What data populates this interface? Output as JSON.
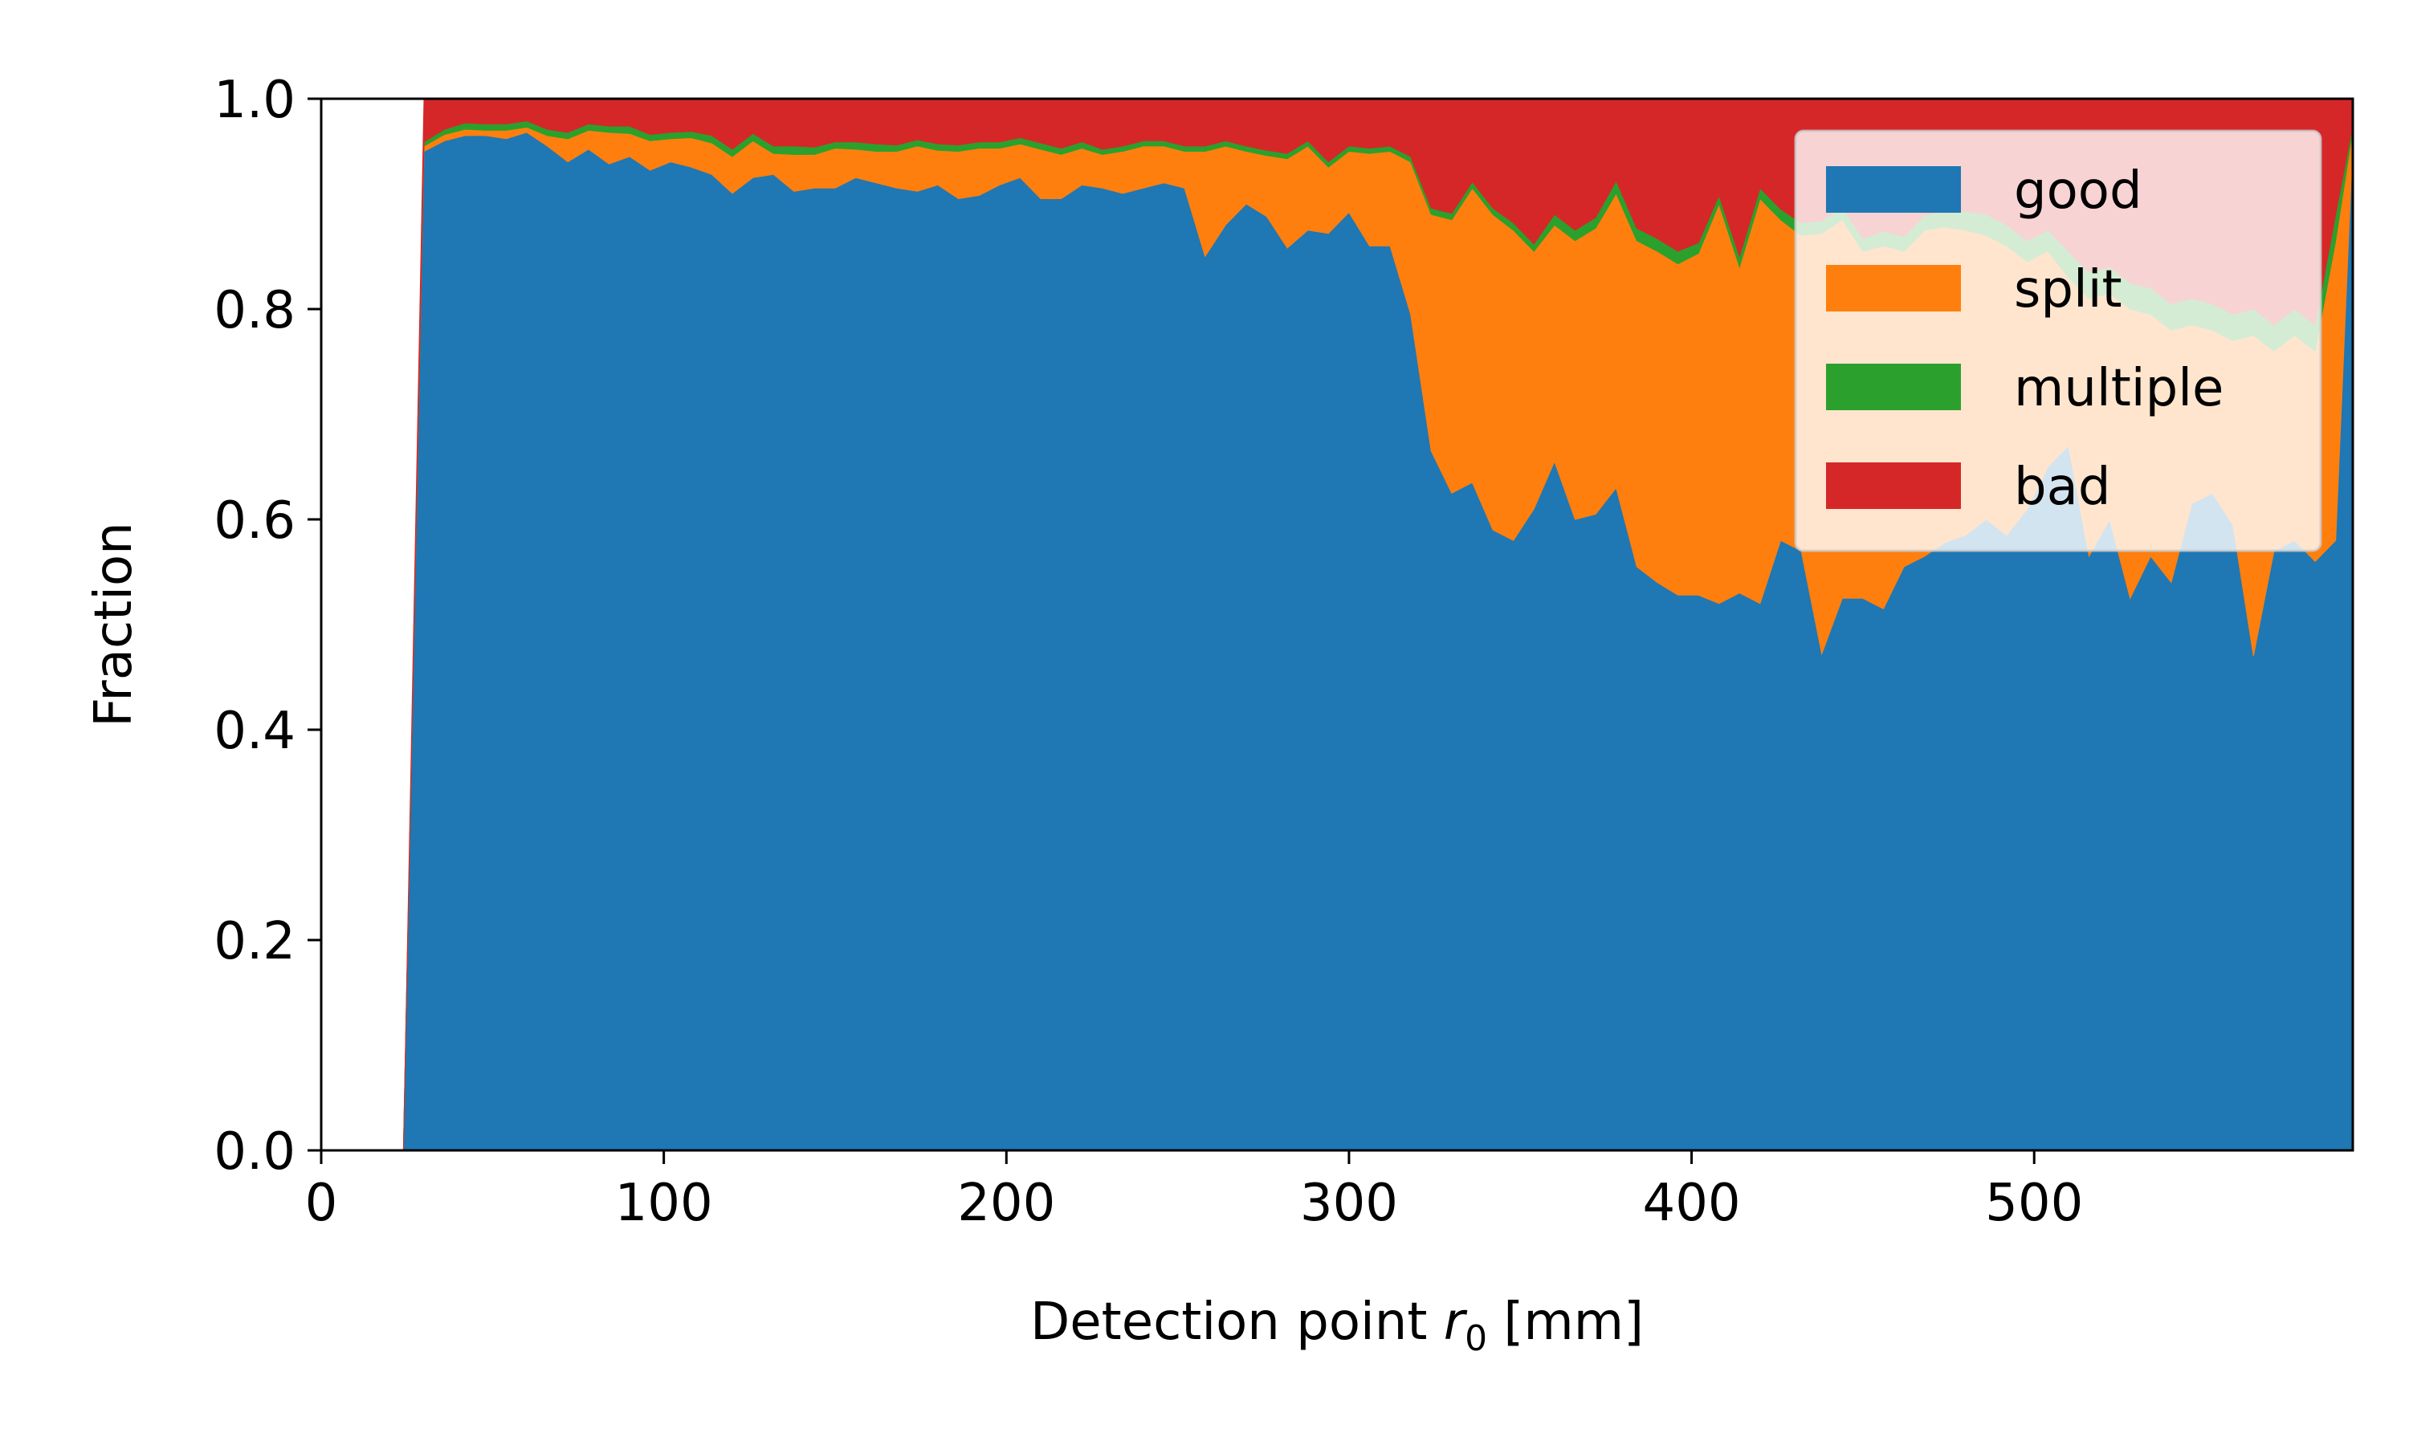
{
  "chart_data": {
    "type": "area",
    "stacked": true,
    "title": "",
    "xlabel": "Detection point r0 [mm]",
    "xlabel_parts": {
      "prefix": "Detection point ",
      "var": "r",
      "sub": "0",
      "suffix": " [mm]"
    },
    "ylabel": "Fraction",
    "xlim": [
      0,
      593
    ],
    "ylim": [
      0,
      1
    ],
    "x_ticks": [
      0,
      100,
      200,
      300,
      400,
      500
    ],
    "y_ticks": [
      0.0,
      0.2,
      0.4,
      0.6,
      0.8,
      1.0
    ],
    "x_tick_labels": [
      "0",
      "100",
      "200",
      "300",
      "400",
      "500"
    ],
    "y_tick_labels": [
      "0.0",
      "0.2",
      "0.4",
      "0.6",
      "0.8",
      "1.0"
    ],
    "grid": false,
    "legend_position": "top-right",
    "legend_alpha": 0.8,
    "x": [
      24,
      30,
      36,
      42,
      48,
      54,
      60,
      66,
      72,
      78,
      84,
      90,
      96,
      102,
      108,
      114,
      120,
      126,
      132,
      138,
      144,
      150,
      156,
      162,
      168,
      174,
      180,
      186,
      192,
      198,
      204,
      210,
      216,
      222,
      228,
      234,
      240,
      246,
      252,
      258,
      264,
      270,
      276,
      282,
      288,
      294,
      300,
      306,
      312,
      318,
      324,
      330,
      336,
      342,
      348,
      354,
      360,
      366,
      372,
      378,
      384,
      390,
      396,
      402,
      408,
      414,
      420,
      426,
      432,
      438,
      444,
      450,
      456,
      462,
      468,
      474,
      480,
      486,
      492,
      498,
      504,
      510,
      516,
      522,
      528,
      534,
      540,
      546,
      552,
      558,
      564,
      570,
      576,
      582,
      588,
      593
    ],
    "series": [
      {
        "name": "good",
        "color": "#1f77b4",
        "values": [
          0.0,
          0.95,
          0.96,
          0.965,
          0.965,
          0.962,
          0.968,
          0.955,
          0.94,
          0.952,
          0.938,
          0.945,
          0.932,
          0.94,
          0.935,
          0.928,
          0.91,
          0.925,
          0.928,
          0.912,
          0.915,
          0.915,
          0.925,
          0.92,
          0.915,
          0.912,
          0.918,
          0.905,
          0.908,
          0.918,
          0.925,
          0.905,
          0.905,
          0.918,
          0.915,
          0.91,
          0.915,
          0.92,
          0.915,
          0.85,
          0.88,
          0.9,
          0.888,
          0.858,
          0.875,
          0.872,
          0.892,
          0.86,
          0.86,
          0.795,
          0.665,
          0.625,
          0.635,
          0.59,
          0.58,
          0.61,
          0.655,
          0.6,
          0.605,
          0.63,
          0.555,
          0.54,
          0.528,
          0.528,
          0.52,
          0.53,
          0.52,
          0.58,
          0.57,
          0.472,
          0.525,
          0.525,
          0.515,
          0.555,
          0.565,
          0.578,
          0.585,
          0.6,
          0.585,
          0.61,
          0.65,
          0.67,
          0.565,
          0.6,
          0.525,
          0.565,
          0.54,
          0.615,
          0.625,
          0.595,
          0.47,
          0.57,
          0.58,
          0.56,
          0.58,
          0.96
        ]
      },
      {
        "name": "split",
        "color": "#ff7f0e",
        "values": [
          0.0,
          0.005,
          0.006,
          0.006,
          0.005,
          0.008,
          0.005,
          0.01,
          0.022,
          0.018,
          0.03,
          0.022,
          0.028,
          0.022,
          0.028,
          0.03,
          0.035,
          0.035,
          0.02,
          0.035,
          0.032,
          0.038,
          0.027,
          0.03,
          0.035,
          0.043,
          0.033,
          0.045,
          0.045,
          0.035,
          0.032,
          0.047,
          0.042,
          0.035,
          0.032,
          0.04,
          0.04,
          0.035,
          0.035,
          0.1,
          0.075,
          0.05,
          0.058,
          0.085,
          0.08,
          0.063,
          0.058,
          0.088,
          0.09,
          0.145,
          0.225,
          0.26,
          0.28,
          0.3,
          0.295,
          0.245,
          0.225,
          0.265,
          0.272,
          0.28,
          0.31,
          0.315,
          0.315,
          0.325,
          0.38,
          0.31,
          0.385,
          0.305,
          0.3,
          0.4,
          0.36,
          0.33,
          0.345,
          0.3,
          0.31,
          0.3,
          0.29,
          0.27,
          0.275,
          0.235,
          0.205,
          0.16,
          0.245,
          0.215,
          0.275,
          0.23,
          0.24,
          0.17,
          0.155,
          0.175,
          0.305,
          0.19,
          0.195,
          0.2,
          0.285,
          0.01
        ]
      },
      {
        "name": "multiple",
        "color": "#2ca02c",
        "values": [
          0.0,
          0.004,
          0.005,
          0.006,
          0.006,
          0.006,
          0.006,
          0.006,
          0.006,
          0.006,
          0.006,
          0.007,
          0.006,
          0.006,
          0.006,
          0.007,
          0.007,
          0.007,
          0.007,
          0.008,
          0.007,
          0.006,
          0.007,
          0.007,
          0.006,
          0.006,
          0.006,
          0.006,
          0.006,
          0.006,
          0.006,
          0.006,
          0.006,
          0.006,
          0.005,
          0.005,
          0.005,
          0.005,
          0.005,
          0.005,
          0.005,
          0.005,
          0.005,
          0.005,
          0.005,
          0.005,
          0.005,
          0.005,
          0.005,
          0.005,
          0.006,
          0.006,
          0.006,
          0.006,
          0.007,
          0.007,
          0.01,
          0.01,
          0.01,
          0.012,
          0.012,
          0.012,
          0.012,
          0.01,
          0.008,
          0.01,
          0.01,
          0.01,
          0.012,
          0.012,
          0.012,
          0.012,
          0.014,
          0.014,
          0.014,
          0.015,
          0.018,
          0.02,
          0.02,
          0.02,
          0.02,
          0.025,
          0.025,
          0.025,
          0.025,
          0.025,
          0.025,
          0.025,
          0.025,
          0.025,
          0.025,
          0.025,
          0.025,
          0.025,
          0.025,
          0.005
        ]
      },
      {
        "name": "bad",
        "color": "#d62728",
        "values": [
          0.0,
          0.041,
          0.029,
          0.023,
          0.024,
          0.024,
          0.021,
          0.029,
          0.032,
          0.024,
          0.026,
          0.026,
          0.034,
          0.032,
          0.031,
          0.035,
          0.048,
          0.033,
          0.045,
          0.045,
          0.046,
          0.041,
          0.041,
          0.043,
          0.044,
          0.039,
          0.043,
          0.044,
          0.041,
          0.041,
          0.037,
          0.042,
          0.047,
          0.041,
          0.048,
          0.045,
          0.04,
          0.04,
          0.045,
          0.045,
          0.04,
          0.045,
          0.049,
          0.052,
          0.04,
          0.06,
          0.045,
          0.047,
          0.045,
          0.055,
          0.104,
          0.109,
          0.079,
          0.104,
          0.118,
          0.138,
          0.11,
          0.125,
          0.113,
          0.078,
          0.123,
          0.133,
          0.145,
          0.137,
          0.092,
          0.15,
          0.085,
          0.105,
          0.118,
          0.116,
          0.103,
          0.133,
          0.126,
          0.131,
          0.111,
          0.107,
          0.107,
          0.11,
          0.12,
          0.135,
          0.125,
          0.145,
          0.165,
          0.16,
          0.175,
          0.18,
          0.195,
          0.19,
          0.195,
          0.205,
          0.2,
          0.215,
          0.2,
          0.215,
          0.11,
          0.025
        ]
      }
    ]
  }
}
